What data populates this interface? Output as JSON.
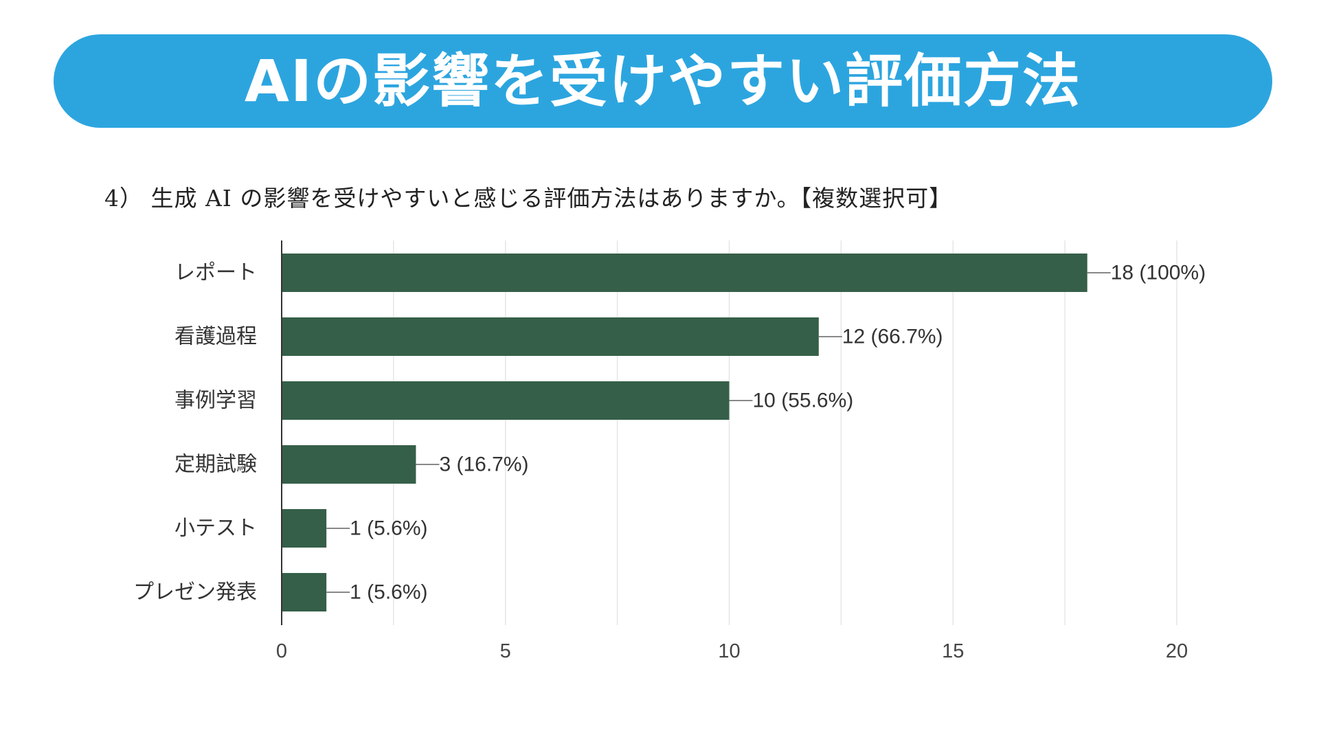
{
  "header": {
    "title": "AIの影響を受けやすい評価方法"
  },
  "question": {
    "text": "4） 生成 AI の影響を受けやすいと感じる評価方法はありますか。【複数選択可】"
  },
  "colors": {
    "banner": "#2ca5df",
    "bar": "#355f48",
    "grid": "#e6e6e6",
    "axis": "#333333",
    "leader": "#888888"
  },
  "chart_data": {
    "type": "bar",
    "orientation": "horizontal",
    "title": "4） 生成 AI の影響を受けやすいと感じる評価方法はありますか。【複数選択可】",
    "categories": [
      "レポート",
      "看護過程",
      "事例学習",
      "定期試験",
      "小テスト",
      "プレゼン発表"
    ],
    "values": [
      18,
      12,
      10,
      3,
      1,
      1
    ],
    "data_labels": [
      "18 (100%)",
      "12 (66.7%)",
      "10 (55.6%)",
      "3 (16.7%)",
      "1 (5.6%)",
      "1 (5.6%)"
    ],
    "xlim": [
      0,
      20
    ],
    "xticks": [
      0,
      5,
      10,
      15,
      20
    ],
    "xtick_labels": [
      "0",
      "5",
      "10",
      "15",
      "20"
    ],
    "minor_grid_step": 2.5,
    "grid": true,
    "legend": "none",
    "xlabel": "",
    "ylabel": ""
  }
}
